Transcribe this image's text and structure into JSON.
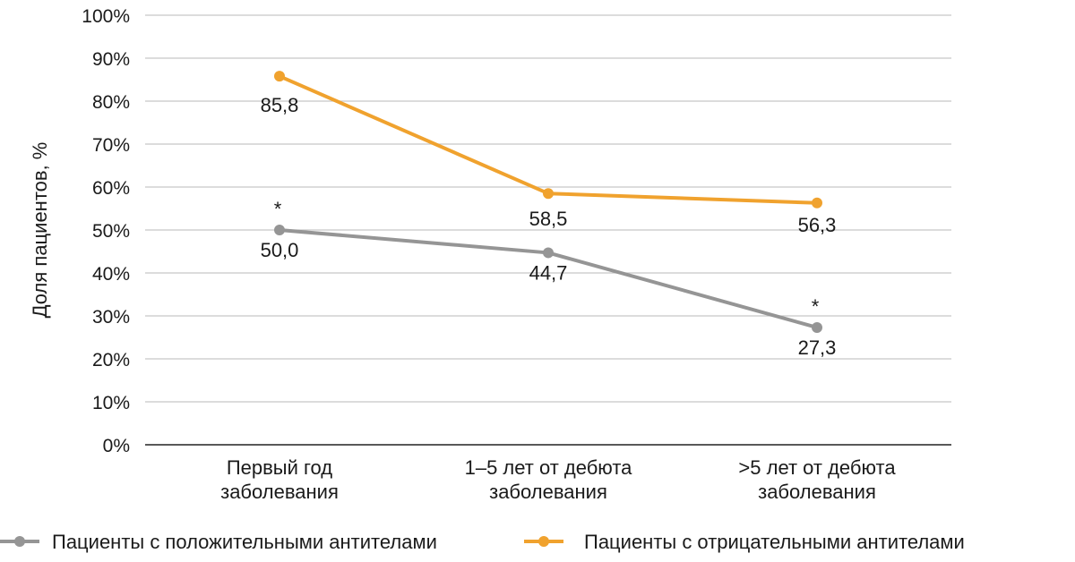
{
  "chart_data": {
    "type": "line",
    "title": "",
    "xlabel": "",
    "ylabel": "Доля пациентов, %",
    "ylim": [
      0,
      100
    ],
    "yticks": [
      "0%",
      "10%",
      "20%",
      "30%",
      "40%",
      "50%",
      "60%",
      "70%",
      "80%",
      "90%",
      "100%"
    ],
    "categories": [
      [
        "Первый год",
        "заболевания"
      ],
      [
        "1–5 лет от дебюта",
        "заболевания"
      ],
      [
        ">5 лет от дебюта",
        "заболевания"
      ]
    ],
    "grid": true,
    "legend_position": "bottom",
    "series": [
      {
        "name": "Пациенты с положительными антителами",
        "color": "#959595",
        "values": [
          50.0,
          44.7,
          27.3
        ],
        "labels": [
          "50,0",
          "44,7",
          "27,3"
        ],
        "annotations": [
          "*",
          "",
          "*"
        ]
      },
      {
        "name": "Пациенты с отрицательными антителами",
        "color": "#F0A22E",
        "values": [
          85.8,
          58.5,
          56.3
        ],
        "labels": [
          "85,8",
          "58,5",
          "56,3"
        ],
        "annotations": [
          "",
          "",
          ""
        ]
      }
    ]
  }
}
